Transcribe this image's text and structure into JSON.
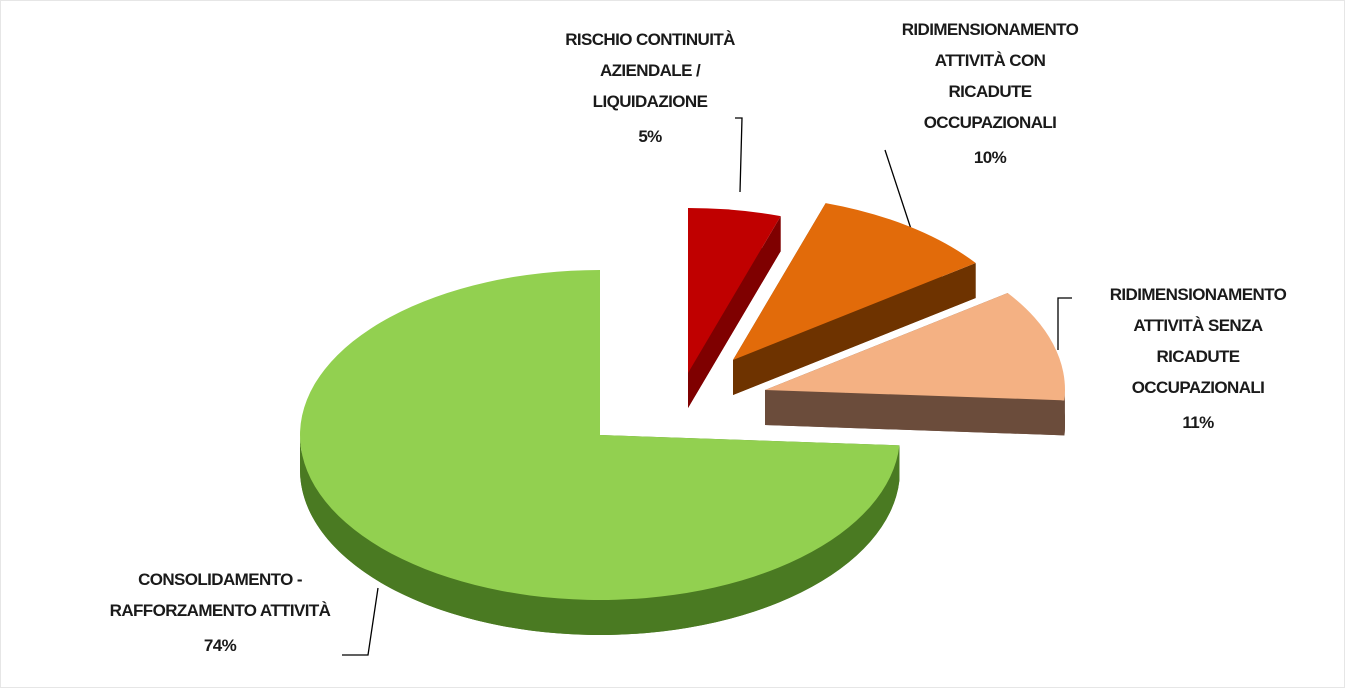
{
  "chart_data": {
    "type": "pie",
    "categories": [
      "RISCHIO CONTINUITÀ\nAZIENDALE /\nLIQUIDAZIONE",
      "RIDIMENSIONAMENTO\nATTIVITÀ CON\nRICADUTE\nOCCUPAZIONALI",
      "RIDIMENSIONAMENTO\nATTIVITÀ SENZA\nRICADUTE\nOCCUPAZIONALI",
      "CONSOLIDAMENTO -\nRAFFORZAMENTO ATTIVITÀ"
    ],
    "values": [
      5,
      10,
      11,
      74
    ],
    "value_labels": [
      "5%",
      "10%",
      "11%",
      "74%"
    ],
    "colors": [
      "#c00000",
      "#e26b0a",
      "#f4b183",
      "#92d050"
    ]
  }
}
